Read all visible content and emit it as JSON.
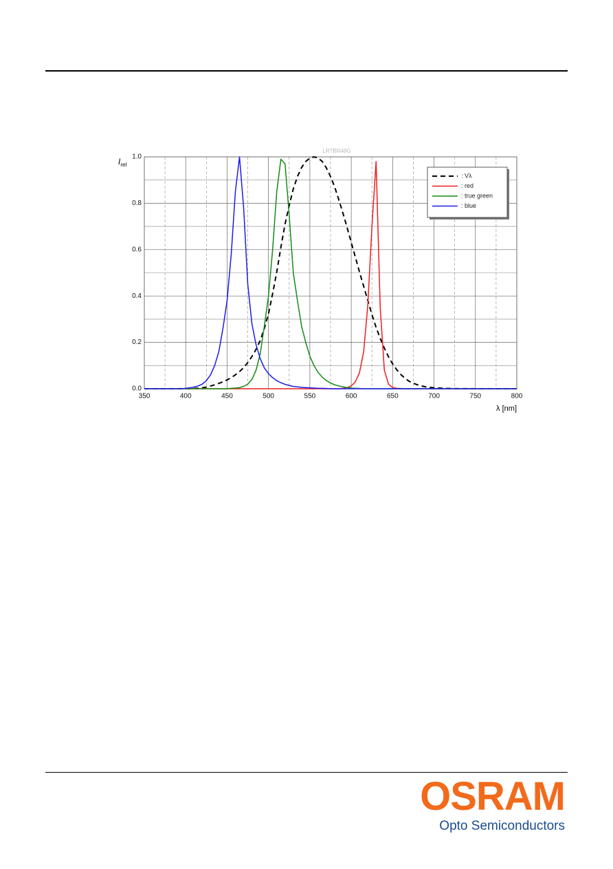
{
  "chart_data": {
    "type": "line",
    "title": "LRTBR48G",
    "ylabel": {
      "text": "I",
      "sub": "rel"
    },
    "xlabel": "λ [nm]",
    "x": [
      350,
      355,
      360,
      365,
      370,
      375,
      380,
      385,
      390,
      395,
      400,
      405,
      410,
      415,
      420,
      425,
      430,
      435,
      440,
      445,
      450,
      455,
      460,
      465,
      470,
      475,
      480,
      485,
      490,
      495,
      500,
      505,
      510,
      515,
      520,
      525,
      530,
      535,
      540,
      545,
      550,
      555,
      560,
      565,
      570,
      575,
      580,
      585,
      590,
      595,
      600,
      605,
      610,
      615,
      620,
      625,
      630,
      635,
      640,
      645,
      650,
      655,
      660,
      665,
      670,
      675,
      680,
      685,
      690,
      695,
      700,
      705,
      710,
      715,
      720,
      725,
      730,
      735,
      740,
      745,
      750,
      755,
      760,
      765,
      770,
      775,
      780,
      785,
      790,
      795,
      800
    ],
    "series": [
      {
        "name": ": Vλ",
        "color": "#000000",
        "dashed": true,
        "values": [
          0,
          0,
          0,
          0,
          0,
          0,
          0,
          0.0001,
          0.0001,
          0.0002,
          0.0004,
          0.0008,
          0.0012,
          0.0024,
          0.004,
          0.007,
          0.0116,
          0.017,
          0.023,
          0.03,
          0.038,
          0.048,
          0.06,
          0.074,
          0.091,
          0.113,
          0.139,
          0.17,
          0.208,
          0.26,
          0.323,
          0.41,
          0.503,
          0.61,
          0.71,
          0.79,
          0.862,
          0.915,
          0.954,
          0.98,
          0.995,
          1.0,
          0.995,
          0.98,
          0.952,
          0.915,
          0.87,
          0.815,
          0.757,
          0.695,
          0.631,
          0.567,
          0.503,
          0.442,
          0.381,
          0.32,
          0.265,
          0.217,
          0.175,
          0.138,
          0.107,
          0.082,
          0.061,
          0.045,
          0.032,
          0.024,
          0.017,
          0.012,
          0.0082,
          0.006,
          0.0041,
          0.003,
          0.0021,
          0.0015,
          0.001,
          0.0007,
          0.0005,
          0.0004,
          0.0003,
          0.0002,
          0.0001,
          0.0001,
          0,
          0,
          0,
          0,
          0,
          0,
          0,
          0,
          0
        ]
      },
      {
        "name": ": red",
        "color": "#ee1c1c",
        "dashed": false,
        "values": [
          0,
          0,
          0,
          0,
          0,
          0,
          0,
          0,
          0,
          0,
          0,
          0,
          0,
          0,
          0,
          0,
          0,
          0,
          0,
          0,
          0,
          0,
          0,
          0,
          0,
          0,
          0,
          0,
          0,
          0,
          0,
          0,
          0,
          0,
          0,
          0,
          0,
          0,
          0,
          0,
          0,
          0,
          0,
          0,
          0,
          0,
          0,
          0,
          0.002,
          0.005,
          0.012,
          0.03,
          0.07,
          0.16,
          0.36,
          0.7,
          0.98,
          0.35,
          0.08,
          0.02,
          0.005,
          0.002,
          0.001,
          0,
          0,
          0,
          0,
          0,
          0,
          0,
          0,
          0,
          0,
          0,
          0,
          0,
          0,
          0,
          0,
          0,
          0,
          0,
          0,
          0,
          0,
          0,
          0,
          0,
          0,
          0,
          0
        ]
      },
      {
        "name": ": true green",
        "color": "#138a13",
        "dashed": false,
        "values": [
          0,
          0,
          0,
          0,
          0,
          0,
          0,
          0,
          0,
          0,
          0,
          0,
          0,
          0,
          0,
          0,
          0,
          0,
          0,
          0,
          0,
          0.002,
          0.003,
          0.005,
          0.01,
          0.02,
          0.04,
          0.08,
          0.15,
          0.27,
          0.4,
          0.6,
          0.85,
          0.99,
          0.97,
          0.75,
          0.5,
          0.38,
          0.27,
          0.2,
          0.14,
          0.1,
          0.07,
          0.05,
          0.035,
          0.025,
          0.017,
          0.012,
          0.008,
          0.005,
          0.003,
          0.002,
          0.001,
          0,
          0,
          0,
          0,
          0,
          0,
          0,
          0,
          0,
          0,
          0,
          0,
          0,
          0,
          0,
          0,
          0,
          0,
          0,
          0,
          0,
          0,
          0,
          0,
          0,
          0,
          0,
          0,
          0,
          0,
          0,
          0,
          0,
          0,
          0,
          0,
          0,
          0
        ]
      },
      {
        "name": ": blue",
        "color": "#1a1aee",
        "dashed": false,
        "values": [
          0,
          0,
          0,
          0,
          0,
          0,
          0,
          0,
          0,
          0,
          0.002,
          0.004,
          0.007,
          0.012,
          0.02,
          0.035,
          0.06,
          0.1,
          0.16,
          0.26,
          0.38,
          0.58,
          0.85,
          1.0,
          0.78,
          0.45,
          0.28,
          0.19,
          0.13,
          0.09,
          0.065,
          0.048,
          0.035,
          0.026,
          0.019,
          0.014,
          0.01,
          0.008,
          0.006,
          0.005,
          0.004,
          0.003,
          0.002,
          0.002,
          0.001,
          0,
          0,
          0,
          0,
          0,
          0,
          0,
          0,
          0,
          0,
          0,
          0,
          0,
          0,
          0,
          0,
          0,
          0,
          0,
          0,
          0,
          0,
          0,
          0,
          0,
          0,
          0,
          0,
          0,
          0,
          0,
          0,
          0,
          0,
          0,
          0,
          0,
          0,
          0,
          0,
          0,
          0,
          0,
          0,
          0,
          0
        ]
      }
    ],
    "xlim": [
      350,
      800
    ],
    "ylim": [
      0,
      1
    ],
    "xticks": [
      350,
      400,
      450,
      500,
      550,
      600,
      650,
      700,
      750,
      800
    ],
    "yticks": [
      {
        "value": 0,
        "label": "0.0"
      },
      {
        "value": 0.2,
        "label": "0.2"
      },
      {
        "value": 0.4,
        "label": "0.4"
      },
      {
        "value": 0.6,
        "label": "0.6"
      },
      {
        "value": 0.8,
        "label": "0.8"
      },
      {
        "value": 1,
        "label": "1.0"
      }
    ],
    "xminorticks": [
      375,
      425,
      475,
      525,
      575,
      625,
      675,
      725,
      775
    ],
    "yminorticks": [
      0.1,
      0.3,
      0.5,
      0.7,
      0.9
    ],
    "grid": true,
    "legend": "upper right"
  },
  "footer": {
    "brand": "OSRAM",
    "division": "Opto Semiconductors",
    "brand_color": "#f26a1b",
    "division_color": "#1b4c8c"
  }
}
